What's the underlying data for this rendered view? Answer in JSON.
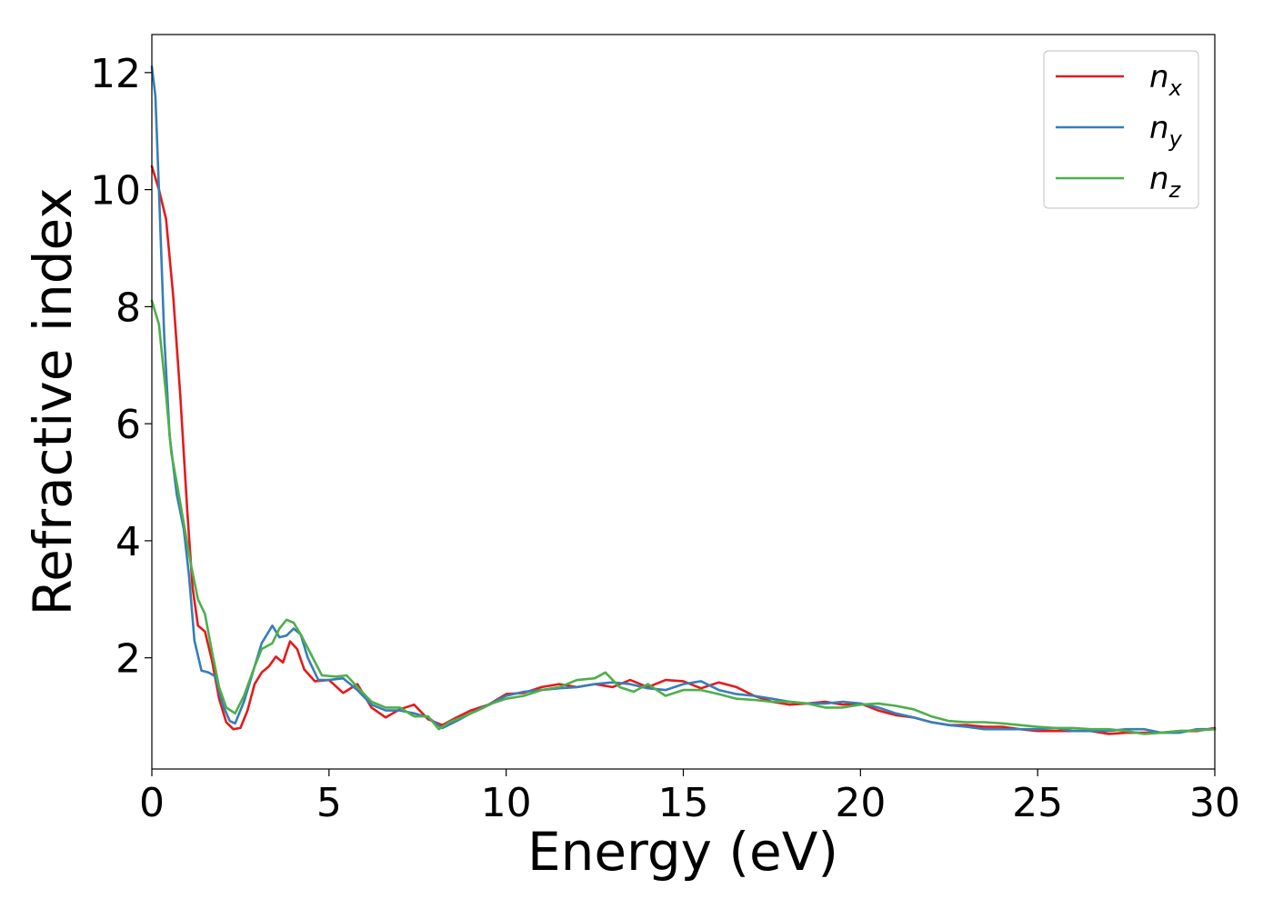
{
  "chart_data": {
    "type": "line",
    "title": "",
    "xlabel": "Energy (eV)",
    "ylabel": "Refractive index",
    "xlim": [
      0,
      30
    ],
    "ylim": [
      0.1,
      12.65
    ],
    "xticks": [
      0,
      5,
      10,
      15,
      20,
      25,
      30
    ],
    "yticks": [
      2,
      4,
      6,
      8,
      10,
      12
    ],
    "grid": false,
    "legend_position": "top-right",
    "series": [
      {
        "name": "n",
        "subscript": "x",
        "color": "#e41a1c",
        "points": [
          [
            0,
            10.4
          ],
          [
            0.2,
            10.0
          ],
          [
            0.4,
            9.5
          ],
          [
            0.6,
            8.2
          ],
          [
            0.8,
            6.5
          ],
          [
            1.0,
            4.5
          ],
          [
            1.15,
            3.2
          ],
          [
            1.3,
            2.55
          ],
          [
            1.5,
            2.45
          ],
          [
            1.7,
            1.95
          ],
          [
            1.9,
            1.3
          ],
          [
            2.1,
            0.9
          ],
          [
            2.3,
            0.78
          ],
          [
            2.5,
            0.8
          ],
          [
            2.7,
            1.1
          ],
          [
            2.9,
            1.55
          ],
          [
            3.1,
            1.75
          ],
          [
            3.3,
            1.85
          ],
          [
            3.5,
            2.02
          ],
          [
            3.7,
            1.92
          ],
          [
            3.9,
            2.28
          ],
          [
            4.1,
            2.15
          ],
          [
            4.3,
            1.8
          ],
          [
            4.6,
            1.6
          ],
          [
            5.0,
            1.62
          ],
          [
            5.4,
            1.4
          ],
          [
            5.8,
            1.55
          ],
          [
            6.2,
            1.15
          ],
          [
            6.6,
            0.98
          ],
          [
            7.0,
            1.12
          ],
          [
            7.4,
            1.2
          ],
          [
            7.8,
            0.95
          ],
          [
            8.2,
            0.85
          ],
          [
            8.6,
            0.98
          ],
          [
            9.0,
            1.1
          ],
          [
            9.5,
            1.2
          ],
          [
            10.0,
            1.38
          ],
          [
            10.5,
            1.4
          ],
          [
            11.0,
            1.5
          ],
          [
            11.5,
            1.55
          ],
          [
            12.0,
            1.5
          ],
          [
            12.5,
            1.55
          ],
          [
            13.0,
            1.5
          ],
          [
            13.5,
            1.62
          ],
          [
            14.0,
            1.5
          ],
          [
            14.5,
            1.62
          ],
          [
            15.0,
            1.6
          ],
          [
            15.5,
            1.48
          ],
          [
            16.0,
            1.58
          ],
          [
            16.5,
            1.5
          ],
          [
            17.0,
            1.35
          ],
          [
            17.5,
            1.25
          ],
          [
            18.0,
            1.2
          ],
          [
            18.5,
            1.22
          ],
          [
            19.0,
            1.25
          ],
          [
            19.5,
            1.2
          ],
          [
            20.0,
            1.22
          ],
          [
            20.5,
            1.1
          ],
          [
            21.0,
            1.02
          ],
          [
            21.5,
            0.98
          ],
          [
            22.0,
            0.9
          ],
          [
            22.5,
            0.85
          ],
          [
            23.0,
            0.85
          ],
          [
            23.5,
            0.82
          ],
          [
            24.0,
            0.82
          ],
          [
            24.5,
            0.78
          ],
          [
            25.0,
            0.75
          ],
          [
            25.5,
            0.75
          ],
          [
            26.0,
            0.75
          ],
          [
            26.5,
            0.75
          ],
          [
            27.0,
            0.7
          ],
          [
            27.5,
            0.72
          ],
          [
            28.0,
            0.72
          ],
          [
            28.5,
            0.72
          ],
          [
            29.0,
            0.75
          ],
          [
            29.5,
            0.75
          ],
          [
            30.0,
            0.8
          ]
        ]
      },
      {
        "name": "n",
        "subscript": "y",
        "color": "#377eb8",
        "points": [
          [
            0,
            12.1
          ],
          [
            0.1,
            11.6
          ],
          [
            0.2,
            10.0
          ],
          [
            0.35,
            7.5
          ],
          [
            0.5,
            5.8
          ],
          [
            0.7,
            4.8
          ],
          [
            0.9,
            4.2
          ],
          [
            1.05,
            3.4
          ],
          [
            1.2,
            2.3
          ],
          [
            1.4,
            1.78
          ],
          [
            1.6,
            1.75
          ],
          [
            1.8,
            1.68
          ],
          [
            2.0,
            1.2
          ],
          [
            2.2,
            0.92
          ],
          [
            2.35,
            0.88
          ],
          [
            2.6,
            1.25
          ],
          [
            2.9,
            1.85
          ],
          [
            3.1,
            2.25
          ],
          [
            3.4,
            2.55
          ],
          [
            3.6,
            2.35
          ],
          [
            3.8,
            2.38
          ],
          [
            4.0,
            2.5
          ],
          [
            4.2,
            2.4
          ],
          [
            4.4,
            2.0
          ],
          [
            4.7,
            1.62
          ],
          [
            5.0,
            1.62
          ],
          [
            5.4,
            1.65
          ],
          [
            5.8,
            1.45
          ],
          [
            6.2,
            1.2
          ],
          [
            6.6,
            1.1
          ],
          [
            7.0,
            1.1
          ],
          [
            7.4,
            1.05
          ],
          [
            7.8,
            0.98
          ],
          [
            8.2,
            0.8
          ],
          [
            8.6,
            0.92
          ],
          [
            9.0,
            1.05
          ],
          [
            9.5,
            1.2
          ],
          [
            10.0,
            1.35
          ],
          [
            10.5,
            1.42
          ],
          [
            11.0,
            1.45
          ],
          [
            11.5,
            1.48
          ],
          [
            12.0,
            1.5
          ],
          [
            12.5,
            1.55
          ],
          [
            13.0,
            1.58
          ],
          [
            13.5,
            1.55
          ],
          [
            14.0,
            1.48
          ],
          [
            14.5,
            1.45
          ],
          [
            15.0,
            1.55
          ],
          [
            15.5,
            1.6
          ],
          [
            16.0,
            1.45
          ],
          [
            16.5,
            1.38
          ],
          [
            17.0,
            1.35
          ],
          [
            17.5,
            1.3
          ],
          [
            18.0,
            1.25
          ],
          [
            18.5,
            1.22
          ],
          [
            19.0,
            1.22
          ],
          [
            19.5,
            1.25
          ],
          [
            20.0,
            1.22
          ],
          [
            20.5,
            1.15
          ],
          [
            21.0,
            1.05
          ],
          [
            21.5,
            0.98
          ],
          [
            22.0,
            0.9
          ],
          [
            22.5,
            0.85
          ],
          [
            23.0,
            0.82
          ],
          [
            23.5,
            0.78
          ],
          [
            24.0,
            0.78
          ],
          [
            24.5,
            0.78
          ],
          [
            25.0,
            0.78
          ],
          [
            25.5,
            0.8
          ],
          [
            26.0,
            0.75
          ],
          [
            26.5,
            0.75
          ],
          [
            27.0,
            0.75
          ],
          [
            27.5,
            0.78
          ],
          [
            28.0,
            0.78
          ],
          [
            28.5,
            0.72
          ],
          [
            29.0,
            0.72
          ],
          [
            29.5,
            0.78
          ],
          [
            30.0,
            0.78
          ]
        ]
      },
      {
        "name": "n",
        "subscript": "z",
        "color": "#4daf4a",
        "points": [
          [
            0,
            8.1
          ],
          [
            0.2,
            7.7
          ],
          [
            0.4,
            6.5
          ],
          [
            0.55,
            5.5
          ],
          [
            0.7,
            5.0
          ],
          [
            0.9,
            4.3
          ],
          [
            1.1,
            3.6
          ],
          [
            1.3,
            3.0
          ],
          [
            1.5,
            2.75
          ],
          [
            1.7,
            2.1
          ],
          [
            1.9,
            1.5
          ],
          [
            2.1,
            1.15
          ],
          [
            2.35,
            1.05
          ],
          [
            2.6,
            1.35
          ],
          [
            2.9,
            1.85
          ],
          [
            3.1,
            2.15
          ],
          [
            3.4,
            2.25
          ],
          [
            3.6,
            2.5
          ],
          [
            3.8,
            2.65
          ],
          [
            4.0,
            2.6
          ],
          [
            4.2,
            2.4
          ],
          [
            4.5,
            2.05
          ],
          [
            4.8,
            1.7
          ],
          [
            5.2,
            1.68
          ],
          [
            5.5,
            1.7
          ],
          [
            5.8,
            1.5
          ],
          [
            6.2,
            1.25
          ],
          [
            6.6,
            1.15
          ],
          [
            7.0,
            1.15
          ],
          [
            7.4,
            1.0
          ],
          [
            7.8,
            1.0
          ],
          [
            8.1,
            0.78
          ],
          [
            8.4,
            0.9
          ],
          [
            8.8,
            1.0
          ],
          [
            9.2,
            1.1
          ],
          [
            9.6,
            1.22
          ],
          [
            10.0,
            1.3
          ],
          [
            10.5,
            1.35
          ],
          [
            11.0,
            1.45
          ],
          [
            11.5,
            1.5
          ],
          [
            12.0,
            1.62
          ],
          [
            12.5,
            1.65
          ],
          [
            12.8,
            1.75
          ],
          [
            13.2,
            1.5
          ],
          [
            13.6,
            1.42
          ],
          [
            14.0,
            1.55
          ],
          [
            14.5,
            1.35
          ],
          [
            15.0,
            1.45
          ],
          [
            15.5,
            1.45
          ],
          [
            16.0,
            1.38
          ],
          [
            16.5,
            1.3
          ],
          [
            17.0,
            1.28
          ],
          [
            17.5,
            1.25
          ],
          [
            18.0,
            1.25
          ],
          [
            18.5,
            1.22
          ],
          [
            19.0,
            1.15
          ],
          [
            19.5,
            1.15
          ],
          [
            20.0,
            1.2
          ],
          [
            20.5,
            1.22
          ],
          [
            21.0,
            1.18
          ],
          [
            21.5,
            1.12
          ],
          [
            22.0,
            1.0
          ],
          [
            22.5,
            0.92
          ],
          [
            23.0,
            0.9
          ],
          [
            23.5,
            0.9
          ],
          [
            24.0,
            0.88
          ],
          [
            24.5,
            0.85
          ],
          [
            25.0,
            0.82
          ],
          [
            25.5,
            0.8
          ],
          [
            26.0,
            0.8
          ],
          [
            26.5,
            0.78
          ],
          [
            27.0,
            0.78
          ],
          [
            27.5,
            0.75
          ],
          [
            28.0,
            0.7
          ],
          [
            28.5,
            0.72
          ],
          [
            29.0,
            0.75
          ],
          [
            29.5,
            0.76
          ],
          [
            30.0,
            0.78
          ]
        ]
      }
    ]
  }
}
